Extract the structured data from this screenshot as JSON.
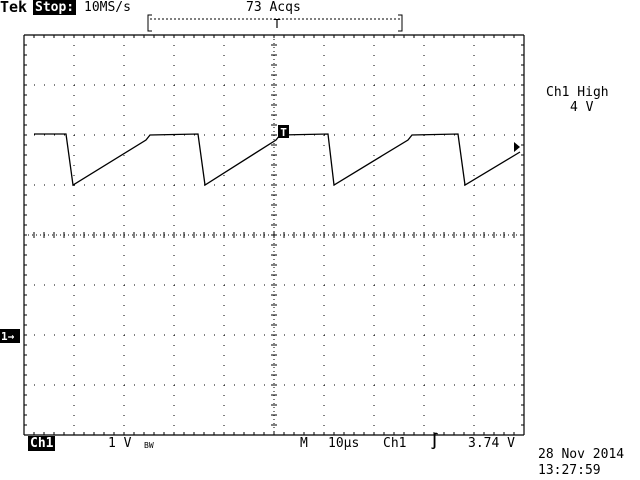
{
  "header": {
    "brand": "Tek",
    "run_state": "Stop:",
    "sample_rate": "10MS/s",
    "acquisitions": "73 Acqs",
    "trigger_pos_marker": "T"
  },
  "measurement": {
    "label": "Ch1 High",
    "value": "4 V"
  },
  "markers": {
    "trigger_level": "T",
    "channel_ground": "1→"
  },
  "footer": {
    "channel": "Ch1",
    "volts_per_div": "1 V",
    "bandwidth": "BW",
    "timebase_label": "M",
    "time_per_div": "10μs",
    "trigger_source": "Ch1",
    "trigger_slope": "∫",
    "trigger_level": "3.74 V",
    "date": "28 Nov 2014",
    "time": "13:27:59"
  },
  "colors": {
    "background": "#ffffff",
    "ink": "#000000"
  }
}
